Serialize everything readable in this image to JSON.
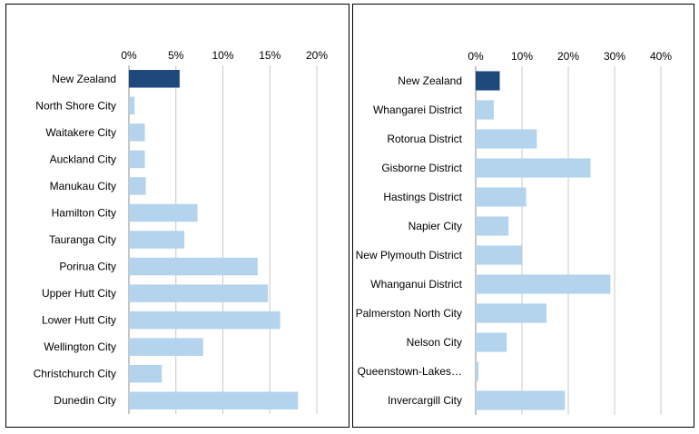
{
  "chart_data": [
    {
      "type": "bar",
      "orientation": "horizontal",
      "categories": [
        "New Zealand",
        "North Shore City",
        "Waitakere City",
        "Auckland City",
        "Manukau City",
        "Hamilton City",
        "Tauranga City",
        "Porirua City",
        "Upper Hutt City",
        "Lower Hutt City",
        "Wellington City",
        "Christchurch City",
        "Dunedin City"
      ],
      "values": [
        5.4,
        0.6,
        1.7,
        1.7,
        1.8,
        7.3,
        5.9,
        13.7,
        14.8,
        16.1,
        7.9,
        3.5,
        18.0
      ],
      "xlim": [
        0,
        20
      ],
      "xticks": [
        "0%",
        "5%",
        "10%",
        "15%",
        "20%"
      ],
      "highlight_category": "New Zealand",
      "colors": {
        "highlight": "#1f497d",
        "bar": "#b4d3ed"
      },
      "grid": true,
      "axis_position": "top"
    },
    {
      "type": "bar",
      "orientation": "horizontal",
      "categories": [
        "New Zealand",
        "Whangarei District",
        "Rotorua District",
        "Gisborne District",
        "Hastings District",
        "Napier City",
        "New Plymouth District",
        "Whanganui District",
        "Palmerston North City",
        "Nelson City",
        "Queenstown-Lakes…",
        "Invercargill City"
      ],
      "values": [
        5.2,
        3.9,
        13.2,
        24.8,
        10.9,
        7.1,
        9.9,
        29.1,
        15.3,
        6.7,
        0.6,
        19.3
      ],
      "xlim": [
        0,
        40
      ],
      "xticks": [
        "0%",
        "10%",
        "20%",
        "30%",
        "40%"
      ],
      "highlight_category": "New Zealand",
      "colors": {
        "highlight": "#1f497d",
        "bar": "#b4d3ed"
      },
      "grid": true,
      "axis_position": "top"
    }
  ]
}
